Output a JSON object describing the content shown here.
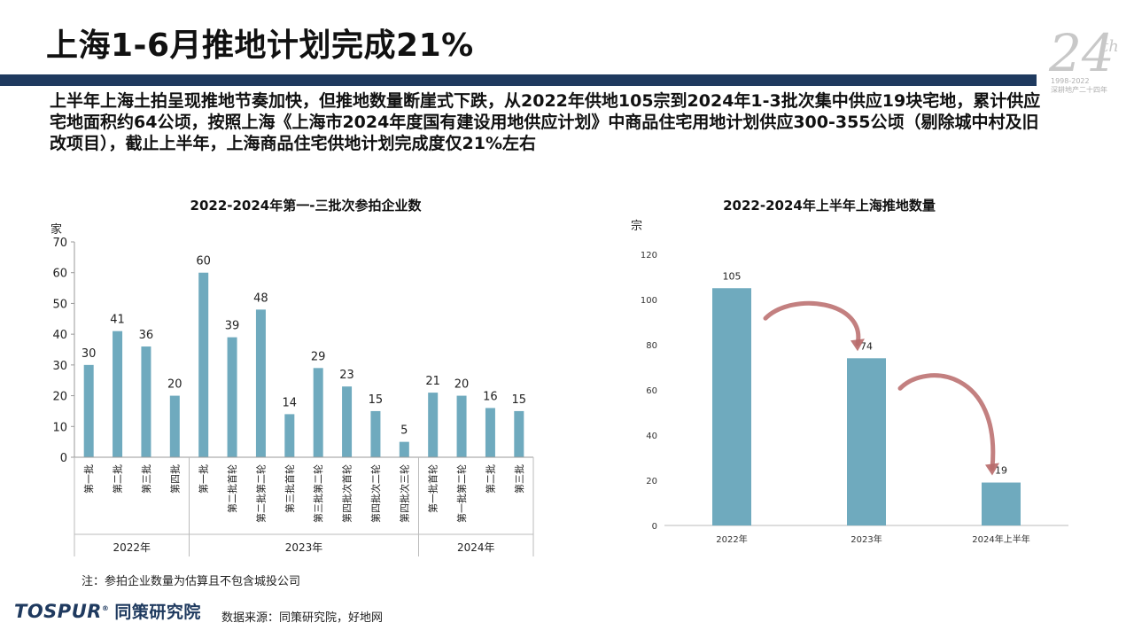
{
  "page": {
    "title": "上海1-6月推地计划完成21%",
    "summary": "上半年上海土拍呈现推地节奏加快，但推地数量断崖式下跌，从2022年供地105宗到2024年1-3批次集中供应19块宅地，累计供应宅地面积约64公顷，按照上海《上海市2024年度国有建设用地供应计划》中商品住宅用地计划供应300-355公顷（剔除城中村及旧改项目），截止上半年，上海商品住宅供地计划完成度仅21%左右",
    "note": "注：参拍企业数量为估算且不包含城投公司",
    "source": "数据来源：同策研究院，好地网",
    "brand_en": "TOSPUR",
    "brand_reg": "®",
    "brand_cn": "同策研究院"
  },
  "logo": {
    "big": "24",
    "sup": "th",
    "years": "1998-2022",
    "tagline": "深耕地产二十四年"
  },
  "colors": {
    "bar": "#6faabe",
    "arrow": "#b86a6a",
    "header_bar": "#1f3a5f"
  },
  "chart_data": [
    {
      "type": "bar",
      "title": "2022-2024年第一-三批次参拍企业数",
      "ylabel": "家",
      "ylim": [
        0,
        70
      ],
      "yticks": [
        0,
        10,
        20,
        30,
        40,
        50,
        60,
        70
      ],
      "categories": [
        "第一批",
        "第二批",
        "第三批",
        "第四批",
        "第一批",
        "第二批首轮",
        "第二批第二轮",
        "第三批首轮",
        "第三批第二轮",
        "第四批次首轮",
        "第四批次二轮",
        "第四批次三轮",
        "第一批首轮",
        "第一批第二轮",
        "第二批",
        "第三批"
      ],
      "values": [
        30,
        41,
        36,
        20,
        60,
        39,
        48,
        14,
        29,
        23,
        15,
        5,
        21,
        20,
        16,
        15
      ],
      "groups": [
        {
          "label": "2022年",
          "count": 4
        },
        {
          "label": "2023年",
          "count": 8
        },
        {
          "label": "2024年",
          "count": 4
        }
      ]
    },
    {
      "type": "bar",
      "title": "2022-2024年上半年上海推地数量",
      "ylabel": "宗",
      "ylim": [
        0,
        120
      ],
      "yticks": [
        0,
        20,
        40,
        60,
        80,
        100,
        120
      ],
      "categories": [
        "2022年",
        "2023年",
        "2024年上半年"
      ],
      "values": [
        105,
        74,
        19
      ]
    }
  ]
}
